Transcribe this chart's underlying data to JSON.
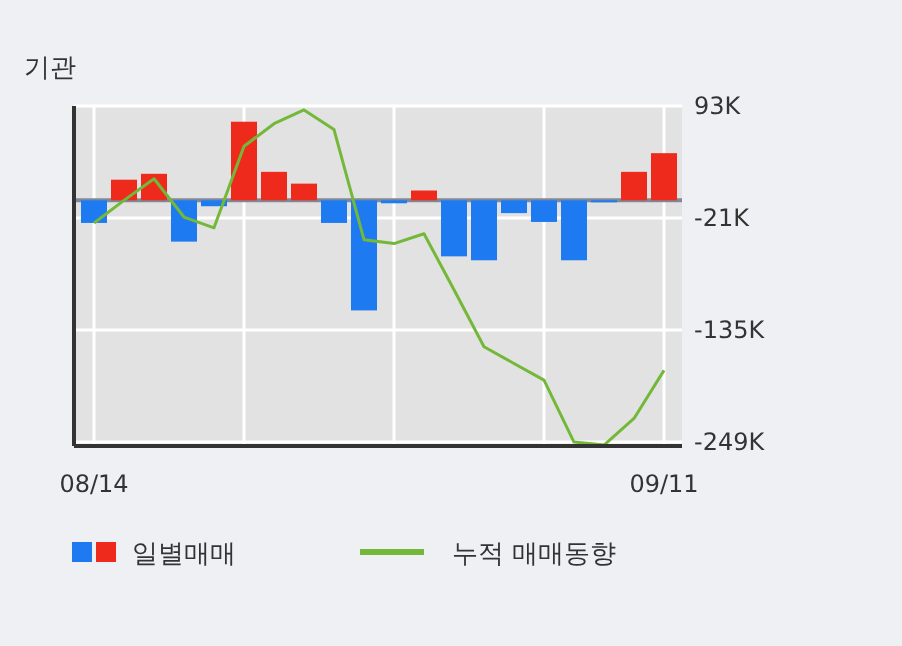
{
  "chart_data": {
    "type": "bar",
    "title": "기관",
    "categories": [
      "08/14",
      null,
      null,
      null,
      null,
      null,
      null,
      null,
      null,
      null,
      null,
      null,
      null,
      null,
      null,
      null,
      null,
      null,
      null,
      "09/11"
    ],
    "series": [
      {
        "name": "일별매매",
        "base": [
          -3000,
          -3000,
          -3000,
          -3000,
          -3000,
          -3000,
          -3000,
          -3000,
          -3000,
          -3000,
          -3000,
          -3000,
          -3000,
          -3000,
          -3000,
          -3000,
          -3000,
          -3000,
          -3000,
          -3000
        ],
        "values": [
          -23000,
          21000,
          27000,
          -42000,
          -6000,
          80000,
          29000,
          17000,
          -23000,
          -112000,
          -3000,
          10000,
          -57000,
          -61000,
          -13000,
          -22000,
          -61000,
          -2000,
          29000,
          48000
        ],
        "colors": [
          "#1e7af0",
          "#ee2a1c",
          "#ee2a1c",
          "#1e7af0",
          "#1e7af0",
          "#ee2a1c",
          "#ee2a1c",
          "#ee2a1c",
          "#1e7af0",
          "#1e7af0",
          "#1e7af0",
          "#ee2a1c",
          "#1e7af0",
          "#1e7af0",
          "#1e7af0",
          "#1e7af0",
          "#1e7af0",
          "#1e7af0",
          "#ee2a1c",
          "#ee2a1c"
        ]
      },
      {
        "name": "누적 매매동향",
        "type": "line",
        "color": "#74b83a",
        "values": [
          -26000,
          -3000,
          19000,
          -20000,
          -31000,
          52000,
          75000,
          89000,
          69000,
          -43000,
          -47000,
          -37000,
          -94000,
          -152000,
          -169000,
          -186000,
          -249000,
          -252000,
          -225000,
          -176000
        ]
      }
    ],
    "ylim": [
      -253000,
      93000
    ],
    "yticks": [
      {
        "value": 93000,
        "label": "93K"
      },
      {
        "value": -21000,
        "label": "-21K"
      },
      {
        "value": -135000,
        "label": "-135K"
      },
      {
        "value": -249000,
        "label": "-249K"
      }
    ],
    "grid": true,
    "legend": "bottom"
  }
}
